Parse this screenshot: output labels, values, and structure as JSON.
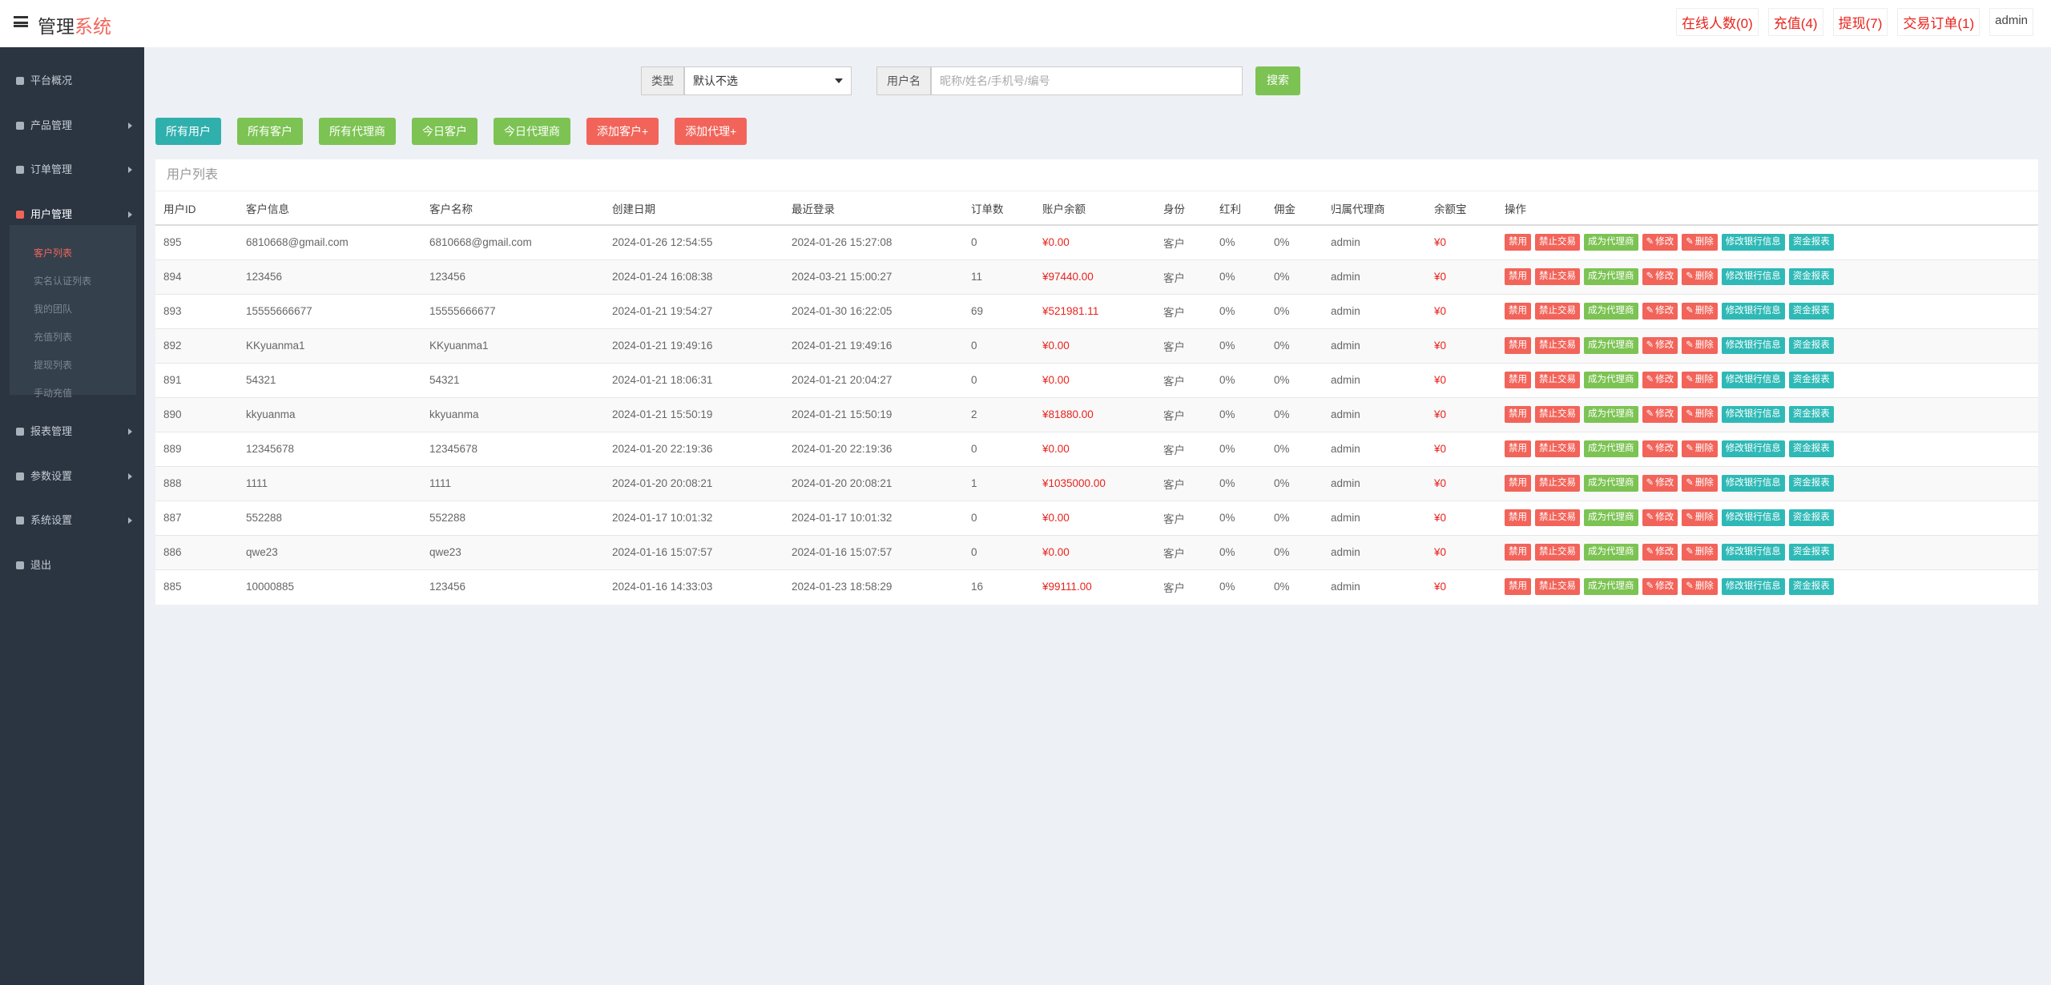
{
  "header": {
    "title_main": "管理",
    "title_accent": "系统",
    "links": [
      "在线人数(0)",
      "充值(4)",
      "提现(7)",
      "交易订单(1)"
    ],
    "user": "admin"
  },
  "sidebar": {
    "items": [
      {
        "label": "平台概况"
      },
      {
        "label": "产品管理"
      },
      {
        "label": "订单管理"
      },
      {
        "label": "用户管理",
        "children": [
          "客户列表",
          "实名认证列表",
          "我的团队",
          "充值列表",
          "提现列表",
          "手动充值"
        ]
      },
      {
        "label": "报表管理"
      },
      {
        "label": "参数设置"
      },
      {
        "label": "系统设置"
      },
      {
        "label": "退出"
      }
    ]
  },
  "search": {
    "type_label": "类型",
    "type_default": "默认不选",
    "username_label": "用户名",
    "placeholder": "昵称/姓名/手机号/编号",
    "button": "搜索"
  },
  "buttons": [
    {
      "label": "所有用户",
      "color": "#2fb0ad"
    },
    {
      "label": "所有客户",
      "color": "#7cc353"
    },
    {
      "label": "所有代理商",
      "color": "#7cc353"
    },
    {
      "label": "今日客户",
      "color": "#7cc353"
    },
    {
      "label": "今日代理商",
      "color": "#7cc353"
    },
    {
      "label": "添加客户+",
      "color": "#f2645a"
    },
    {
      "label": "添加代理+",
      "color": "#f2645a"
    }
  ],
  "table": {
    "title": "用户列表",
    "columns": [
      "用户ID",
      "客户信息",
      "客户名称",
      "创建日期",
      "最近登录",
      "订单数",
      "账户余额",
      "身份",
      "红利",
      "佣金",
      "归属代理商",
      "余额宝",
      "操作"
    ],
    "rows": [
      [
        "895",
        "6810668@gmail.com",
        "6810668@gmail.com",
        "2024-01-26 12:54:55",
        "2024-01-26 15:27:08",
        "0",
        "¥0.00",
        "客户",
        "0%",
        "0%",
        "admin",
        "¥0"
      ],
      [
        "894",
        "123456",
        "123456",
        "2024-01-24 16:08:38",
        "2024-03-21 15:00:27",
        "11",
        "¥97440.00",
        "客户",
        "0%",
        "0%",
        "admin",
        "¥0"
      ],
      [
        "893",
        "15555666677",
        "15555666677",
        "2024-01-21 19:54:27",
        "2024-01-30 16:22:05",
        "69",
        "¥521981.11",
        "客户",
        "0%",
        "0%",
        "admin",
        "¥0"
      ],
      [
        "892",
        "KKyuanma1",
        "KKyuanma1",
        "2024-01-21 19:49:16",
        "2024-01-21 19:49:16",
        "0",
        "¥0.00",
        "客户",
        "0%",
        "0%",
        "admin",
        "¥0"
      ],
      [
        "891",
        "54321",
        "54321",
        "2024-01-21 18:06:31",
        "2024-01-21 20:04:27",
        "0",
        "¥0.00",
        "客户",
        "0%",
        "0%",
        "admin",
        "¥0"
      ],
      [
        "890",
        "kkyuanma",
        "kkyuanma",
        "2024-01-21 15:50:19",
        "2024-01-21 15:50:19",
        "2",
        "¥81880.00",
        "客户",
        "0%",
        "0%",
        "admin",
        "¥0"
      ],
      [
        "889",
        "12345678",
        "12345678",
        "2024-01-20 22:19:36",
        "2024-01-20 22:19:36",
        "0",
        "¥0.00",
        "客户",
        "0%",
        "0%",
        "admin",
        "¥0"
      ],
      [
        "888",
        "1111",
        "1111",
        "2024-01-20 20:08:21",
        "2024-01-20 20:08:21",
        "1",
        "¥1035000.00",
        "客户",
        "0%",
        "0%",
        "admin",
        "¥0"
      ],
      [
        "887",
        "552288",
        "552288",
        "2024-01-17 10:01:32",
        "2024-01-17 10:01:32",
        "0",
        "¥0.00",
        "客户",
        "0%",
        "0%",
        "admin",
        "¥0"
      ],
      [
        "886",
        "qwe23",
        "qwe23",
        "2024-01-16 15:07:57",
        "2024-01-16 15:07:57",
        "0",
        "¥0.00",
        "客户",
        "0%",
        "0%",
        "admin",
        "¥0"
      ],
      [
        "885",
        "10000885",
        "123456",
        "2024-01-16 14:33:03",
        "2024-01-23 18:58:29",
        "16",
        "¥99111.00",
        "客户",
        "0%",
        "0%",
        "admin",
        "¥0"
      ]
    ]
  },
  "actions": [
    {
      "label": "禁用",
      "color": "#f2645a"
    },
    {
      "label": "禁止交易",
      "color": "#f2645a"
    },
    {
      "label": "成为代理商",
      "color": "#7cc353"
    },
    {
      "label": "修改",
      "color": "#f2645a"
    },
    {
      "label": "删除",
      "color": "#f2645a"
    },
    {
      "label": "修改银行信息",
      "color": "#2fb9b6"
    },
    {
      "label": "资金报表",
      "color": "#2fb9b6"
    }
  ]
}
